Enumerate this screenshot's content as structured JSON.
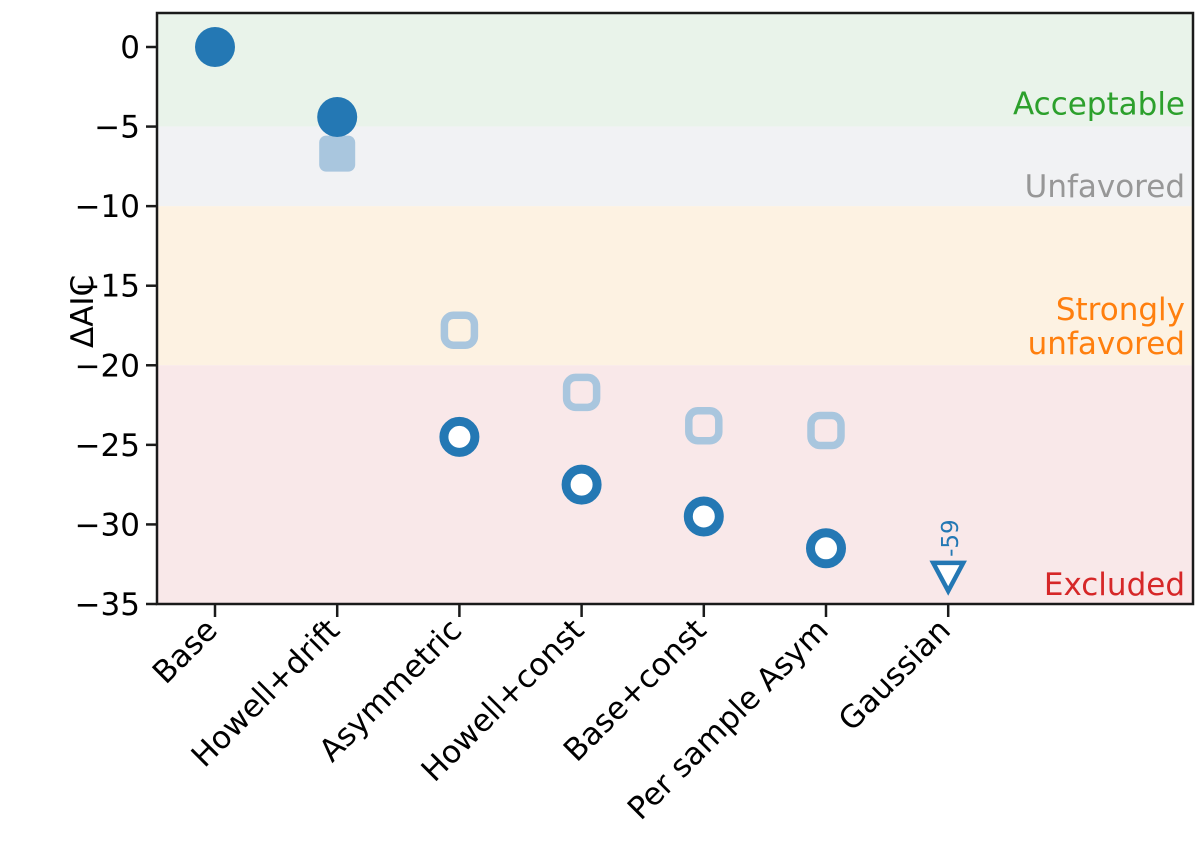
{
  "chart_data": {
    "type": "scatter",
    "title": "",
    "xlabel": "",
    "ylabel": "ΔAIC",
    "ylim": [
      -35,
      2.1
    ],
    "grid": false,
    "legend": "none",
    "yticks": [
      {
        "value": 0,
        "label": "0"
      },
      {
        "value": -5,
        "label": "−5"
      },
      {
        "value": -10,
        "label": "−10"
      },
      {
        "value": -15,
        "label": "−15"
      },
      {
        "value": -20,
        "label": "−20"
      },
      {
        "value": -25,
        "label": "−25"
      },
      {
        "value": -30,
        "label": "−30"
      },
      {
        "value": -35,
        "label": "−35"
      }
    ],
    "categories": [
      "Base",
      "Howell+drift",
      "Asymmetric",
      "Howell+const",
      "Base+const",
      "Per sample Asym",
      "Gaussian"
    ],
    "series": [
      {
        "name": "square-markers",
        "marker": "square",
        "color": "#a9c6de",
        "values": [
          null,
          -6.7,
          -17.8,
          -21.7,
          -23.8,
          -24.1,
          null
        ],
        "filled": [
          false,
          true,
          false,
          false,
          false,
          false,
          false
        ]
      },
      {
        "name": "circle-markers",
        "marker": "circle",
        "color": "#2478b4",
        "values": [
          0.0,
          -4.4,
          -24.5,
          -27.5,
          -29.5,
          -31.5,
          null
        ],
        "filled": [
          true,
          true,
          false,
          false,
          false,
          false,
          false
        ]
      }
    ],
    "annotations": [
      {
        "category": "Gaussian",
        "category_index": 6,
        "marker": "triangle-down-open",
        "marker_color": "#2478b4",
        "plotted_at": -33.3,
        "label": "-59",
        "label_color": "#2478b4",
        "label_rotation_deg": 90
      }
    ],
    "bands": [
      {
        "id": "acceptable",
        "lines": [
          "Acceptable"
        ],
        "from": 2.1,
        "to": -5,
        "bg": "#e9f3ea",
        "label_color": "#2ca02c",
        "label_at": -3.6
      },
      {
        "id": "unfavored",
        "lines": [
          "Unfavored"
        ],
        "from": -5,
        "to": -10,
        "bg": "#f1f2f4",
        "label_color": "#979797",
        "label_at": -8.8
      },
      {
        "id": "strongly-unfavored",
        "lines": [
          "Strongly",
          "unfavored"
        ],
        "from": -10,
        "to": -20,
        "bg": "#fdf2e2",
        "label_color": "#ff7f0e",
        "label_at": -17.6
      },
      {
        "id": "excluded",
        "lines": [
          "Excluded"
        ],
        "from": -20,
        "to": -35,
        "bg": "#f9e8e9",
        "label_color": "#d62728",
        "label_at": -33.8
      }
    ],
    "spine_color": "#1a1a1a"
  }
}
